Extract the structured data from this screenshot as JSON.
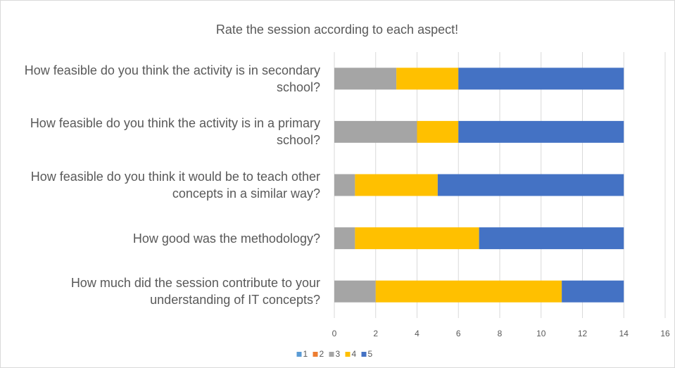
{
  "chart_data": {
    "type": "stacked_barh",
    "title": "Rate the session according to each aspect!",
    "categories": [
      "How feasible do you think the activity is in secondary school?",
      "How feasible do you think the activity is in a primary school?",
      "How feasible do you think it would be to teach other concepts in a similar way?",
      "How good was the methodology?",
      "How much did the session contribute to your understanding of IT concepts?"
    ],
    "series": [
      {
        "name": "1",
        "color": "#5b9bd5",
        "values": [
          0,
          0,
          0,
          0,
          0
        ]
      },
      {
        "name": "2",
        "color": "#ed7d31",
        "values": [
          0,
          0,
          0,
          0,
          0
        ]
      },
      {
        "name": "3",
        "color": "#a5a5a5",
        "values": [
          3,
          4,
          1,
          1,
          2
        ]
      },
      {
        "name": "4",
        "color": "#ffc000",
        "values": [
          3,
          2,
          4,
          6,
          9
        ]
      },
      {
        "name": "5",
        "color": "#4472c4",
        "values": [
          8,
          8,
          9,
          7,
          3
        ]
      }
    ],
    "xlim": [
      0,
      16
    ],
    "xticks": [
      0,
      2,
      4,
      6,
      8,
      10,
      12,
      14,
      16
    ],
    "grid": true,
    "legend": "bottom"
  }
}
